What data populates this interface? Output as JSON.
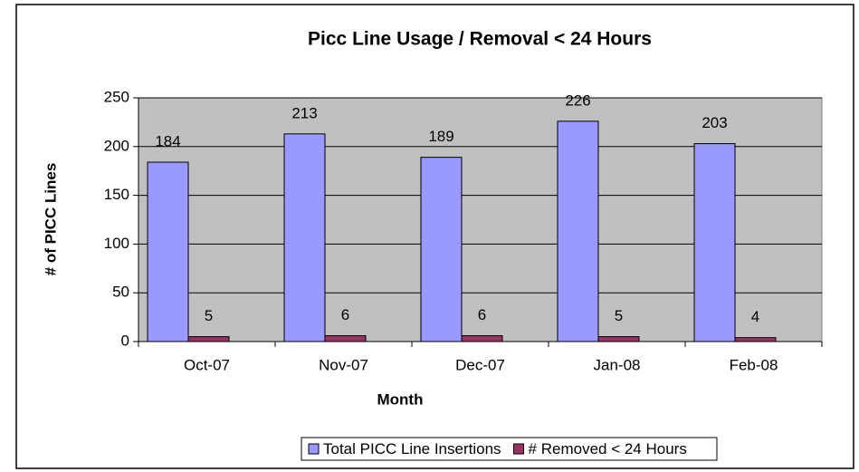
{
  "chart_data": {
    "type": "bar",
    "title": "Picc Line Usage / Removal < 24 Hours",
    "x_label": "Month",
    "y_label": "# of PICC Lines",
    "categories": [
      "Oct-07",
      "Nov-07",
      "Dec-07",
      "Jan-08",
      "Feb-08"
    ],
    "series": [
      {
        "name": "Total PICC Line Insertions",
        "color": "#9999ff",
        "values": [
          184,
          213,
          189,
          226,
          203
        ]
      },
      {
        "name": "# Removed < 24 Hours",
        "color": "#993366",
        "values": [
          5,
          6,
          6,
          5,
          4
        ]
      }
    ],
    "ylim": [
      0,
      250
    ],
    "yticks": [
      0,
      50,
      100,
      150,
      200,
      250
    ],
    "grid": true,
    "legend": "bottom"
  }
}
